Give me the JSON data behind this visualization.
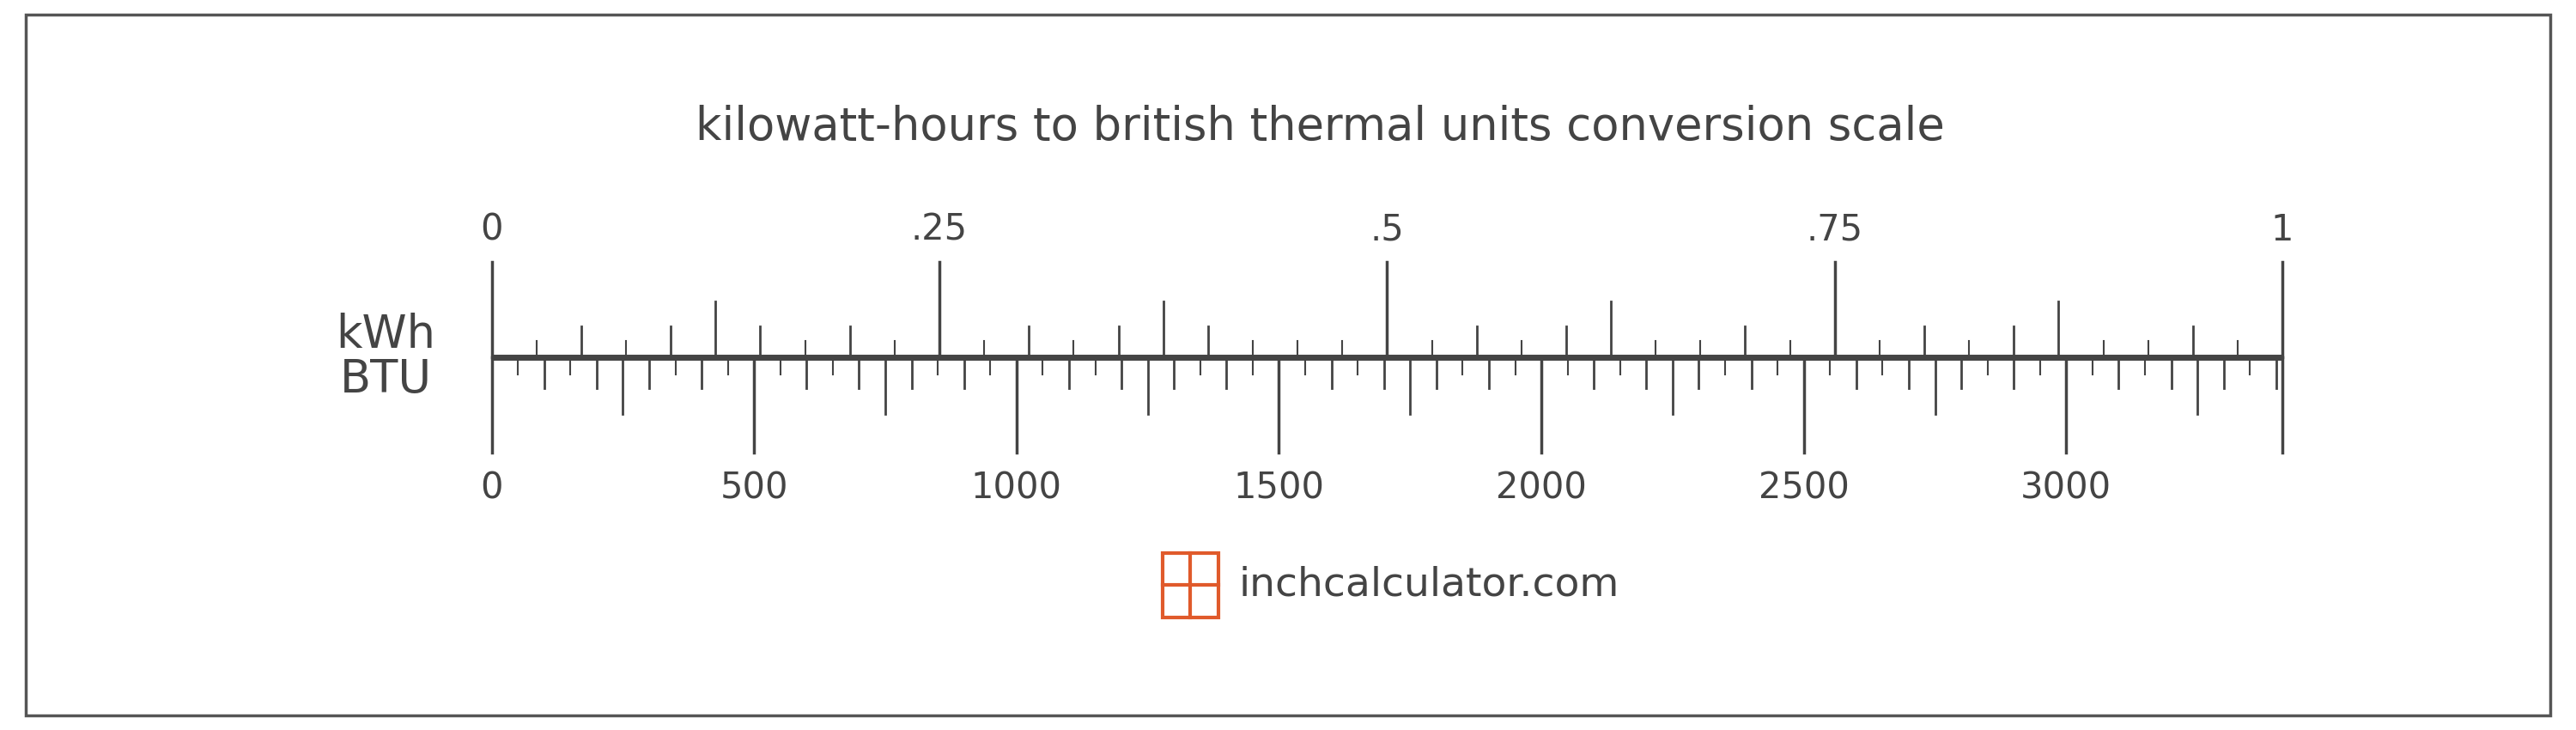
{
  "title": "kilowatt-hours to british thermal units conversion scale",
  "title_fontsize": 38,
  "background_color": "#ffffff",
  "border_color": "#555555",
  "kwh_label": "kWh",
  "btu_label": "BTU",
  "label_fontsize": 38,
  "kwh_major_ticks": [
    0,
    0.25,
    0.5,
    0.75,
    1.0
  ],
  "kwh_major_labels": [
    "0",
    ".25",
    ".5",
    ".75",
    "1"
  ],
  "btu_major_ticks": [
    0,
    500,
    1000,
    1500,
    2000,
    2500,
    3000
  ],
  "btu_max": 3412,
  "tick_label_fontsize": 30,
  "watermark_text": "inchcalculator.com",
  "watermark_fontsize": 34,
  "watermark_color": "#444444",
  "icon_color": "#e05a2b",
  "scale_color": "#444444",
  "text_color": "#444444"
}
